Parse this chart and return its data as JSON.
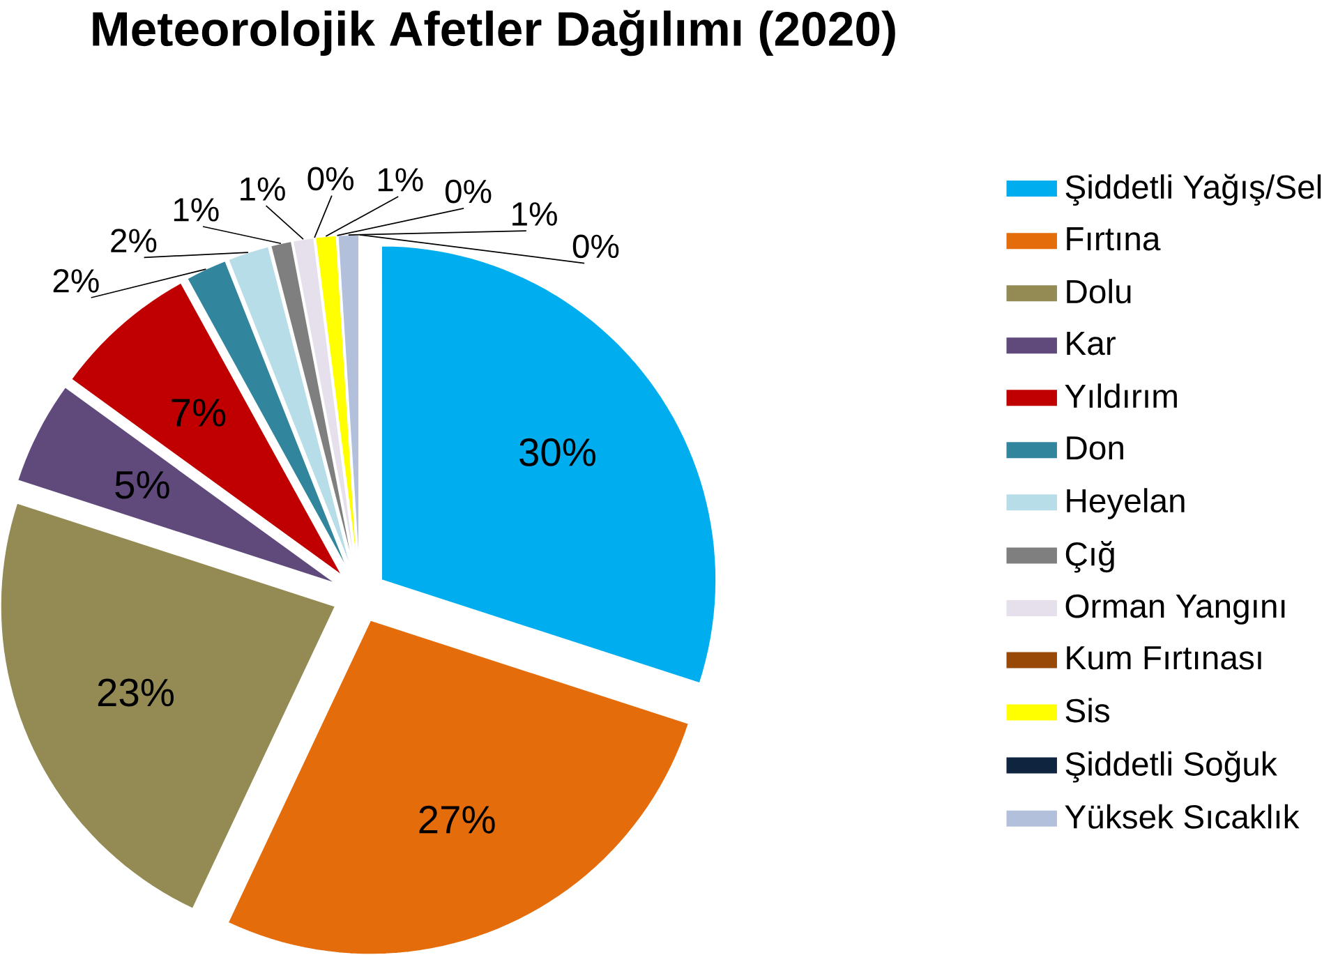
{
  "chart_data": {
    "type": "pie",
    "title": "Meteorolojik Afetler Dağılımı (2020)",
    "categories": [
      "Şiddetli Yağış/Sel",
      "Fırtına",
      "Dolu",
      "Kar",
      "Yıldırım",
      "Don",
      "Heyelan",
      "Çığ",
      "Orman Yangını",
      "Kum Fırtınası",
      "Sis",
      "Şiddetli Soğuk",
      "Yüksek Sıcaklık",
      null
    ],
    "values": [
      30,
      27,
      23,
      5,
      7,
      2,
      2,
      1,
      1,
      0,
      1,
      0,
      1,
      0
    ],
    "value_labels": [
      "30%",
      "27%",
      "23%",
      "5%",
      "7%",
      "2%",
      "2%",
      "1%",
      "1%",
      "0%",
      "1%",
      "0%",
      "1%",
      "0%"
    ],
    "colors": [
      "#00aeef",
      "#e46c0a",
      "#948a54",
      "#604a7b",
      "#c00000",
      "#31859c",
      "#b7dde8",
      "#7f7f7f",
      "#e6e0ec",
      "#984807",
      "#ffff00",
      "#0f243e",
      "#b3c0dc",
      "#e6b9b8"
    ],
    "legend": "right"
  }
}
